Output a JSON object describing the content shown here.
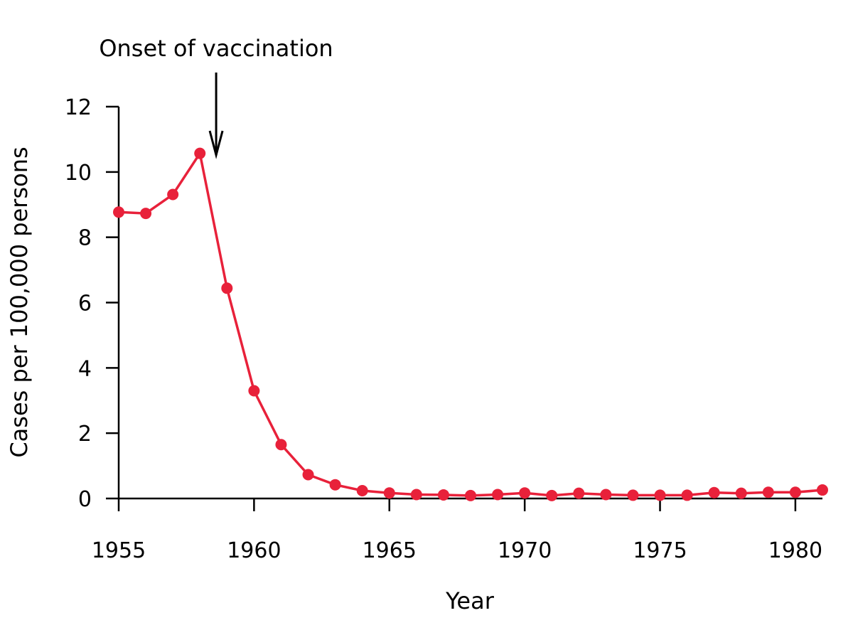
{
  "chart_data": {
    "type": "line",
    "title": "",
    "xlabel": "Year",
    "ylabel": "Cases per 100,000 persons",
    "xlim": [
      1955,
      1981
    ],
    "ylim": [
      0,
      12
    ],
    "x_ticks": [
      1955,
      1960,
      1965,
      1970,
      1975,
      1980
    ],
    "y_ticks": [
      0,
      2,
      4,
      6,
      8,
      10,
      12
    ],
    "grid": false,
    "line_color": "#e8213a",
    "annotation": {
      "text": "Onset of vaccination",
      "x": 1958.6
    },
    "x": [
      1955,
      1956,
      1957,
      1958,
      1959,
      1960,
      1961,
      1962,
      1963,
      1964,
      1965,
      1966,
      1967,
      1968,
      1969,
      1970,
      1971,
      1972,
      1973,
      1974,
      1975,
      1976,
      1977,
      1978,
      1979,
      1980,
      1981
    ],
    "values": [
      8.77,
      8.73,
      9.31,
      10.57,
      6.44,
      3.3,
      1.65,
      0.73,
      0.42,
      0.24,
      0.17,
      0.12,
      0.11,
      0.09,
      0.12,
      0.17,
      0.09,
      0.16,
      0.12,
      0.1,
      0.1,
      0.1,
      0.18,
      0.16,
      0.19,
      0.19,
      0.26
    ]
  }
}
